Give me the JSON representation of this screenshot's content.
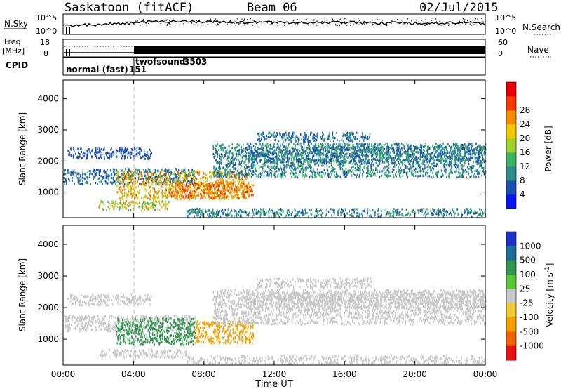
{
  "header": {
    "station": "Saskatoon (fitACF)",
    "beam": "Beam 06",
    "date": "02/Jul/2015"
  },
  "noise_panel": {
    "left_label": "N.Sky",
    "right_label": "N.Search",
    "left_ticks": [
      "10^5",
      "10^0"
    ],
    "right_ticks": [
      "10^5",
      "10^0"
    ],
    "right_legend_style": "dotted"
  },
  "freq_panel": {
    "left_label_1": "Freq.",
    "left_label_2": "[MHz]",
    "right_label": "Nave",
    "left_ticks": [
      "18",
      "8"
    ],
    "right_ticks": [
      "60",
      "0"
    ],
    "right_legend_style": "dotted"
  },
  "cpid_panel": {
    "label": "CPID",
    "modes": [
      {
        "name": "normal (fast)",
        "cpid": "151",
        "start_hour": 0
      },
      {
        "name": "twofsound",
        "cpid": "3503",
        "start_hour": 4
      }
    ]
  },
  "x_axis": {
    "label": "Time UT",
    "min_hour": 0,
    "max_hour": 24,
    "ticks": [
      "00:00",
      "04:00",
      "08:00",
      "12:00",
      "16:00",
      "20:00",
      "00:00"
    ]
  },
  "chart_data": [
    {
      "type": "heatmap",
      "panel": "power",
      "xlabel": "Time UT",
      "ylabel": "Slant Range [km]",
      "ylim": [
        180,
        4600
      ],
      "yticks": [
        "1000",
        "2000",
        "3000",
        "4000"
      ],
      "x_units": "hours UT",
      "colorbar": {
        "label": "Power [dB]",
        "ticks": [
          "4",
          "8",
          "12",
          "16",
          "20",
          "24",
          "28"
        ],
        "colors": [
          "#0a14f0",
          "#1e50b4",
          "#2d8c8c",
          "#3cb464",
          "#a0d22d",
          "#f0c800",
          "#f58c00",
          "#f03c00",
          "#e60000"
        ]
      },
      "regions": [
        {
          "x": [
            0.0,
            7.5
          ],
          "y": [
            1280,
            1780
          ],
          "level_range": [
            4,
            12
          ]
        },
        {
          "x": [
            3.0,
            10.6
          ],
          "y": [
            800,
            1700
          ],
          "level_range": [
            16,
            30
          ]
        },
        {
          "x": [
            6.0,
            10.8
          ],
          "y": [
            850,
            1350
          ],
          "level_range": [
            24,
            30
          ]
        },
        {
          "x": [
            2.0,
            6.0
          ],
          "y": [
            450,
            750
          ],
          "level_range": [
            12,
            26
          ]
        },
        {
          "x": [
            7.0,
            24.0
          ],
          "y": [
            250,
            500
          ],
          "level_range": [
            4,
            16
          ]
        },
        {
          "x": [
            8.5,
            24.0
          ],
          "y": [
            1500,
            2600
          ],
          "level_range": [
            4,
            16
          ]
        },
        {
          "x": [
            10.5,
            24.0
          ],
          "y": [
            2000,
            2500
          ],
          "level_range": [
            4,
            14
          ]
        },
        {
          "x": [
            11.0,
            17.5
          ],
          "y": [
            2650,
            2950
          ],
          "level_range": [
            4,
            12
          ]
        },
        {
          "x": [
            0.2,
            5.0
          ],
          "y": [
            2100,
            2450
          ],
          "level_range": [
            4,
            8
          ]
        }
      ]
    },
    {
      "type": "heatmap",
      "panel": "velocity",
      "xlabel": "Time UT",
      "ylabel": "Slant Range [km]",
      "ylim": [
        180,
        4600
      ],
      "yticks": [
        "1000",
        "2000",
        "3000",
        "4000"
      ],
      "x_units": "hours UT",
      "colorbar": {
        "label": "Velocity [m s^-1]",
        "ticks": [
          "1000",
          "500",
          "100",
          "25",
          "-25",
          "-100",
          "-500",
          "-1000"
        ],
        "colors": [
          "#1e32c8",
          "#1e6e9a",
          "#329650",
          "#5ac832",
          "#c8c8c8",
          "#f0c832",
          "#f5a000",
          "#f06400",
          "#e61414"
        ]
      },
      "regions": [
        {
          "x": [
            0.0,
            7.5
          ],
          "y": [
            1280,
            1780
          ],
          "velocity_range": [
            -25,
            25
          ]
        },
        {
          "x": [
            3.0,
            7.5
          ],
          "y": [
            850,
            1700
          ],
          "velocity_range": [
            100,
            500
          ]
        },
        {
          "x": [
            7.5,
            10.8
          ],
          "y": [
            900,
            1600
          ],
          "velocity_range": [
            -500,
            -100
          ]
        },
        {
          "x": [
            2.0,
            7.0
          ],
          "y": [
            450,
            700
          ],
          "velocity_range": [
            -25,
            25
          ]
        },
        {
          "x": [
            7.0,
            24.0
          ],
          "y": [
            250,
            500
          ],
          "velocity_range": [
            -25,
            25
          ]
        },
        {
          "x": [
            8.5,
            24.0
          ],
          "y": [
            1500,
            2600
          ],
          "velocity_range": [
            -25,
            25
          ]
        },
        {
          "x": [
            10.5,
            24.0
          ],
          "y": [
            2000,
            2500
          ],
          "velocity_range": [
            -25,
            25
          ]
        },
        {
          "x": [
            11.0,
            17.5
          ],
          "y": [
            2650,
            2950
          ],
          "velocity_range": [
            -25,
            25
          ]
        },
        {
          "x": [
            0.2,
            5.0
          ],
          "y": [
            2100,
            2450
          ],
          "velocity_range": [
            -25,
            25
          ]
        }
      ]
    }
  ]
}
